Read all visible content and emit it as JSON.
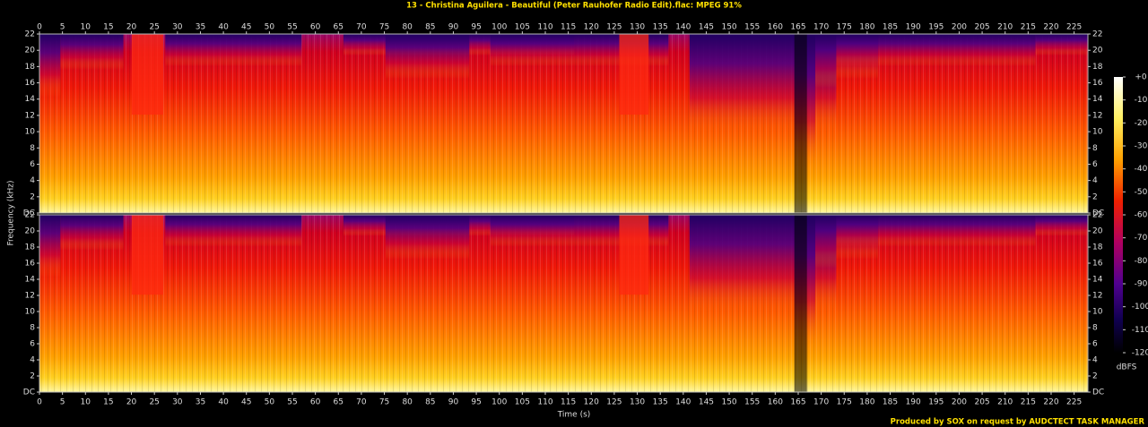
{
  "chart_data": {
    "type": "spectrogram",
    "title": "13 - Christina Aguilera - Beautiful (Peter Rauhofer Radio Edit).flac: MPEG 91%",
    "xlabel": "Time (s)",
    "ylabel": "Frequency (kHz)",
    "xlim": [
      0,
      228
    ],
    "xticks": [
      0,
      5,
      10,
      15,
      20,
      25,
      30,
      35,
      40,
      45,
      50,
      55,
      60,
      65,
      70,
      75,
      80,
      85,
      90,
      95,
      100,
      105,
      110,
      115,
      120,
      125,
      130,
      135,
      140,
      145,
      150,
      155,
      160,
      165,
      170,
      175,
      180,
      185,
      190,
      195,
      200,
      205,
      210,
      215,
      220,
      225
    ],
    "ylim": [
      0,
      22
    ],
    "yticks": [
      {
        "value": 0,
        "label": "DC"
      },
      2,
      4,
      6,
      8,
      10,
      12,
      14,
      16,
      18,
      20,
      22
    ],
    "colorbar": {
      "label": "dBFS",
      "lim": [
        -120,
        0
      ],
      "ticks": [
        {
          "value": 0,
          "label": "+0"
        },
        -10,
        -20,
        -30,
        -40,
        -50,
        -60,
        -70,
        -80,
        -90,
        -100,
        -110,
        -120
      ]
    },
    "footer": "Produced by SOX on request by AUDCTECT TASK MANAGER"
  }
}
